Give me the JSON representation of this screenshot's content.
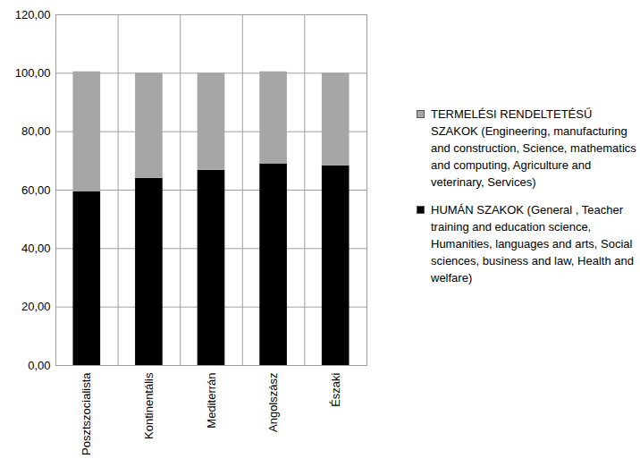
{
  "chart_data": {
    "type": "bar",
    "stacked": true,
    "grid": true,
    "legend": "right",
    "categories": [
      "Posztszocialista",
      "Kontinentális",
      "Mediterrán",
      "Angolszász",
      "Északi"
    ],
    "series": [
      {
        "name": "HUMÁN SZAKOK (General , Teacher training and education science, Humanities, languages and arts, Social sciences, business and law, Health and welfare)",
        "color": "#000000",
        "values": [
          59.5,
          64.0,
          66.8,
          69.0,
          68.3
        ]
      },
      {
        "name": "TERMELÉSI RENDELTETÉSŰ SZAKOK (Engineering, manufacturing and construction, Science, mathematics and computing, Agriculture and veterinary, Services)",
        "color": "#a6a6a6",
        "values": [
          41.0,
          36.0,
          33.2,
          31.5,
          31.7
        ]
      }
    ],
    "ylim": [
      0,
      120
    ],
    "yticks": [
      {
        "value": 0,
        "label": "0,00"
      },
      {
        "value": 20,
        "label": "20,00"
      },
      {
        "value": 40,
        "label": "40,00"
      },
      {
        "value": 60,
        "label": "60,00"
      },
      {
        "value": 80,
        "label": "80,00"
      },
      {
        "value": 100,
        "label": "100,00"
      },
      {
        "value": 120,
        "label": "120,00"
      }
    ]
  }
}
